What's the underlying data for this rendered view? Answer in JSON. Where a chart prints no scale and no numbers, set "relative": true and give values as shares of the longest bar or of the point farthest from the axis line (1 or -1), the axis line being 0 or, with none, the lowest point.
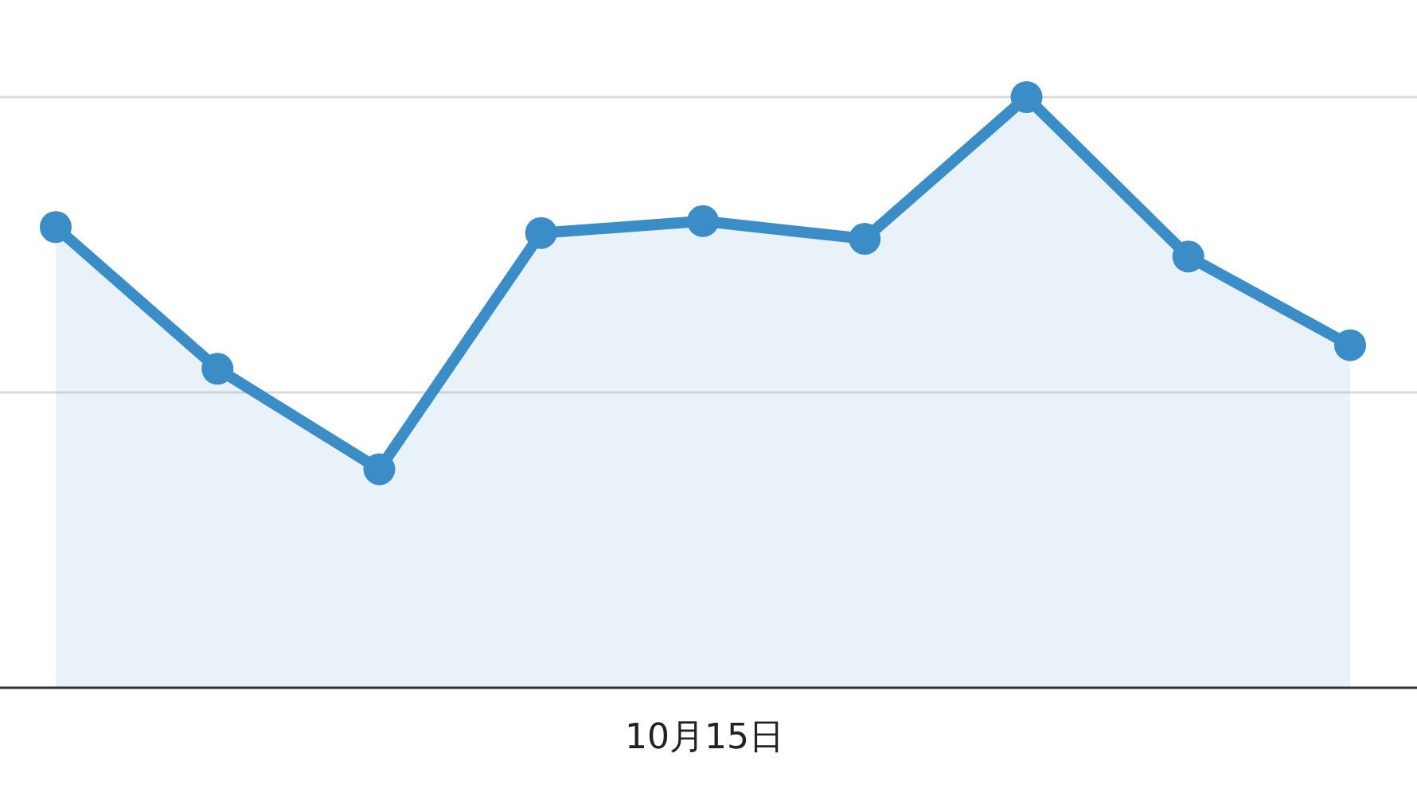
{
  "chart_data": {
    "type": "area",
    "relative": true,
    "categories": [
      null,
      null,
      null,
      null,
      null,
      null,
      null,
      null,
      null
    ],
    "annotations": [
      "10月15日"
    ],
    "series": [
      {
        "color": "#3a8dc6",
        "values": [
          0.78,
          0.54,
          0.37,
          0.77,
          0.79,
          0.76,
          1,
          0.73,
          0.58
        ]
      }
    ],
    "ref_lines": [
      {
        "axis": "y",
        "value": 0.5,
        "color": "#dcdcdc"
      },
      {
        "axis": "y",
        "value": 1,
        "color": "#dcdcdc"
      }
    ],
    "marker": "circle"
  }
}
